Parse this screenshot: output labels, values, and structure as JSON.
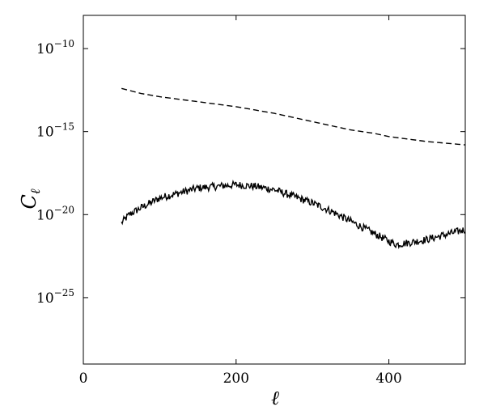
{
  "chart_data": {
    "type": "line",
    "xlabel": "ℓ",
    "ylabel": "C",
    "ylabel_sub": "ℓ",
    "xlim": [
      0,
      500
    ],
    "ylim_log10": [
      -29,
      -8
    ],
    "y_scale": "log",
    "grid": false,
    "x_ticks": [
      {
        "value": 0,
        "label": "0"
      },
      {
        "value": 200,
        "label": "200"
      },
      {
        "value": 400,
        "label": "400"
      }
    ],
    "y_ticks": [
      {
        "exp": -10,
        "base": "10",
        "sup": "−10"
      },
      {
        "exp": -15,
        "base": "10",
        "sup": "−15"
      },
      {
        "exp": -20,
        "base": "10",
        "sup": "−20"
      },
      {
        "exp": -25,
        "base": "10",
        "sup": "−25"
      }
    ],
    "series": [
      {
        "style": "dashed",
        "color": "#000000",
        "x": [
          50,
          75,
          100,
          150,
          200,
          250,
          300,
          350,
          380,
          400,
          450,
          500
        ],
        "log10_y": [
          -12.4,
          -12.7,
          -12.9,
          -13.2,
          -13.5,
          -13.9,
          -14.4,
          -14.9,
          -15.1,
          -15.3,
          -15.6,
          -15.8
        ]
      },
      {
        "style": "solid",
        "color": "#000000",
        "noisy": true,
        "x": [
          50,
          60,
          75,
          100,
          125,
          150,
          175,
          200,
          225,
          250,
          275,
          300,
          325,
          350,
          375,
          400,
          410,
          425,
          450,
          475,
          500
        ],
        "log10_y": [
          -20.5,
          -20.0,
          -19.6,
          -19.0,
          -18.7,
          -18.4,
          -18.3,
          -18.2,
          -18.3,
          -18.5,
          -18.9,
          -19.3,
          -19.8,
          -20.4,
          -21.0,
          -21.6,
          -21.8,
          -21.7,
          -21.5,
          -21.2,
          -20.9
        ]
      }
    ]
  }
}
